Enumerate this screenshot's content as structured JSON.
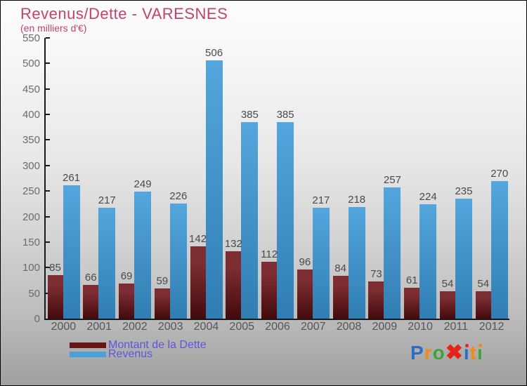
{
  "title": "Revenus/Dette - VARESNES",
  "subtitle": "(en milliers d'€)",
  "colors": {
    "title_text": "#c4416e",
    "legend_text": "#5d55dd",
    "axis": "#1a1a1a",
    "ytick_label": "#6b6b6b",
    "value_label": "#4a4a4a",
    "xtick_label": "#565656",
    "dette_gradient_top": "#7e2e33",
    "dette_gradient_bottom": "#430a0d",
    "revenus_gradient_top": "#55a6de",
    "revenus_gradient_bottom": "#2f7db3",
    "legend_dette_swatch": "#681518",
    "legend_revenus_swatch": "#4aa0d8"
  },
  "legend": {
    "items": [
      {
        "label": "Montant de la Dette",
        "swatch": "#681518"
      },
      {
        "label": "Revenus",
        "swatch": "#4aa0d8"
      }
    ]
  },
  "logo": {
    "text": "Proxiti",
    "letters": [
      {
        "ch": "P",
        "color": "#2a6fc5"
      },
      {
        "ch": "r",
        "color": "#f28a16"
      },
      {
        "ch": "o",
        "color": "#3da33a"
      },
      {
        "ch": "✖",
        "color": "#e5231b",
        "big": true
      },
      {
        "ch": "i",
        "color": "#2a6fc5",
        "dot": "#e5231b"
      },
      {
        "ch": "t",
        "color": "#f28a16"
      },
      {
        "ch": "i",
        "color": "#3da33a",
        "dot": "#f28a16"
      }
    ]
  },
  "chart_data": {
    "type": "bar",
    "title": "Revenus/Dette - VARESNES",
    "subtitle": "(en milliers d'€)",
    "categories": [
      "2000",
      "2001",
      "2002",
      "2003",
      "2004",
      "2005",
      "2006",
      "2007",
      "2008",
      "2009",
      "2010",
      "2011",
      "2012"
    ],
    "series": [
      {
        "name": "Montant de la Dette",
        "values": [
          85,
          66,
          69,
          59,
          142,
          132,
          112,
          96,
          84,
          73,
          61,
          54,
          54
        ]
      },
      {
        "name": "Revenus",
        "values": [
          261,
          217,
          249,
          226,
          506,
          385,
          385,
          217,
          218,
          257,
          224,
          235,
          270
        ]
      }
    ],
    "ylim": [
      0,
      550
    ],
    "ytick_step": 50,
    "grid": false,
    "value_labels": true,
    "legend_position": "bottom-left"
  }
}
